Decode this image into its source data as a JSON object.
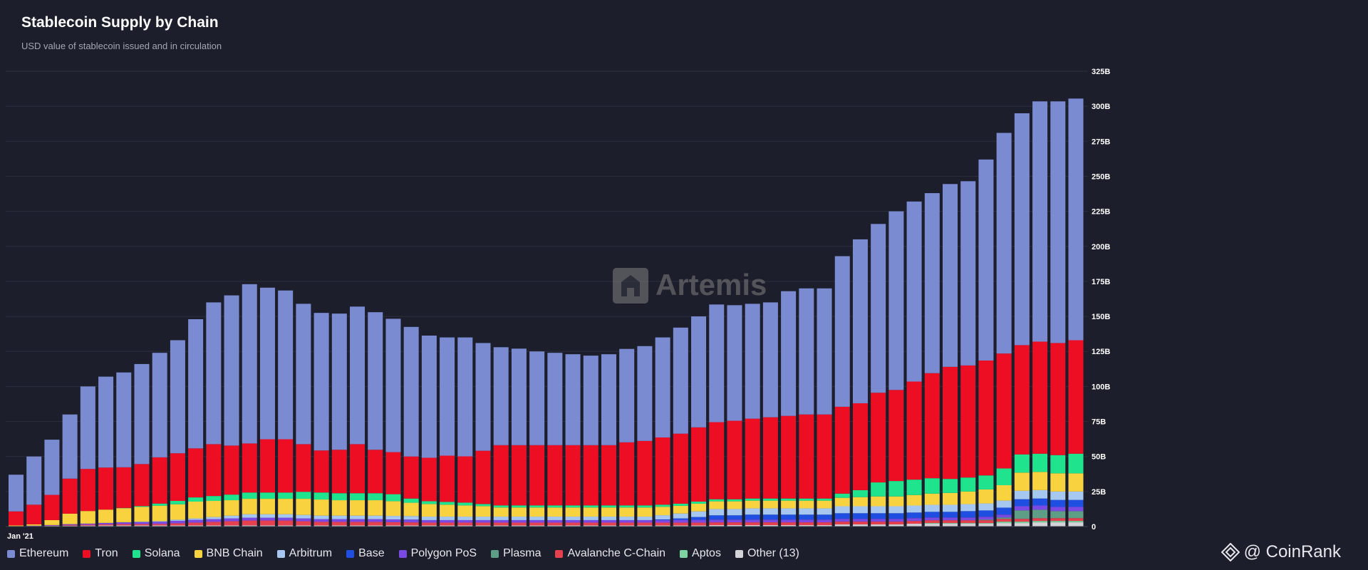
{
  "header": {
    "title": "Stablecoin Supply by Chain",
    "subtitle": "USD value of stablecoin issued and in circulation"
  },
  "watermark": {
    "text": "Artemis",
    "icon": "artemis-logo"
  },
  "brand": {
    "text": "@ CoinRank",
    "icon": "binance-diamond-icon"
  },
  "colors": {
    "background": "#1c1f2b",
    "gridline": "#2b2f3c",
    "axis_text": "#ffffff"
  },
  "chart_data": {
    "type": "bar",
    "stacked": true,
    "title": "Stablecoin Supply by Chain",
    "subtitle": "USD value of stablecoin issued and in circulation",
    "x_label_shown": "Jan '21",
    "y_tick_labels": [
      "0",
      "25B",
      "50B",
      "75B",
      "100B",
      "125B",
      "150B",
      "175B",
      "200B",
      "225B",
      "250B",
      "275B",
      "300B",
      "325B"
    ],
    "ylim": [
      0,
      325
    ],
    "y_unit": "B USD",
    "grid": true,
    "legend_position": "bottom-left",
    "totals": [
      37,
      50,
      62,
      80,
      100,
      107,
      110,
      116,
      124,
      133,
      148,
      158,
      165,
      173,
      171,
      169,
      159,
      152,
      152,
      157,
      153,
      149,
      143,
      136,
      135,
      135,
      130,
      128,
      127,
      125,
      124,
      123,
      122,
      123,
      127,
      129,
      135,
      141,
      149,
      159,
      159,
      160,
      162,
      168,
      171,
      171,
      191,
      203,
      216,
      226,
      232,
      239,
      245,
      249,
      263,
      282,
      297,
      305,
      305,
      309
    ],
    "series": [
      {
        "name": "Other (13)",
        "color": "#d4d4d8",
        "values": [
          0.3,
          0.4,
          0.5,
          0.6,
          0.7,
          0.8,
          0.8,
          0.8,
          0.8,
          0.8,
          0.8,
          0.8,
          0.8,
          0.8,
          0.8,
          0.8,
          0.8,
          0.8,
          0.8,
          0.8,
          0.8,
          0.8,
          0.8,
          0.8,
          0.8,
          0.8,
          0.8,
          0.8,
          0.8,
          0.8,
          0.8,
          0.8,
          0.8,
          0.8,
          0.8,
          0.8,
          0.8,
          0.8,
          0.8,
          1,
          1,
          1,
          1,
          1,
          1,
          1,
          1.5,
          1.5,
          1.5,
          1.5,
          2,
          2,
          2,
          2,
          2,
          2.5,
          2.5,
          3,
          3,
          3
        ]
      },
      {
        "name": "Aptos",
        "color": "#7ed4a0",
        "values": [
          0,
          0,
          0,
          0,
          0,
          0,
          0,
          0,
          0,
          0,
          0,
          0,
          0,
          0,
          0,
          0,
          0,
          0,
          0,
          0,
          0,
          0,
          0,
          0,
          0,
          0,
          0,
          0,
          0,
          0,
          0,
          0,
          0,
          0,
          0,
          0,
          0,
          0,
          0,
          0,
          0,
          0,
          0,
          0,
          0,
          0,
          0,
          0,
          0,
          0,
          0,
          0.5,
          0.5,
          0.5,
          0.5,
          1,
          1,
          1,
          1,
          1
        ]
      },
      {
        "name": "Avalanche C-Chain",
        "color": "#e5404e",
        "values": [
          0,
          0,
          0.2,
          0.5,
          0.6,
          0.8,
          1,
          1,
          1,
          1.5,
          2,
          2.5,
          3,
          3.5,
          3.5,
          3.5,
          3,
          2.5,
          2.5,
          2.5,
          2.5,
          2.3,
          2.2,
          2,
          2,
          2,
          2,
          2,
          2,
          2,
          2,
          2,
          2,
          2,
          2,
          2,
          2,
          2,
          2,
          2,
          2,
          2,
          2,
          2,
          2,
          2,
          2,
          2,
          2,
          2,
          2,
          2,
          2,
          2,
          2,
          2,
          2,
          2,
          2,
          2
        ]
      },
      {
        "name": "Plasma",
        "color": "#5f9e86",
        "values": [
          0,
          0,
          0,
          0,
          0,
          0,
          0,
          0,
          0,
          0,
          0,
          0,
          0,
          0,
          0,
          0,
          0,
          0,
          0,
          0,
          0,
          0,
          0,
          0,
          0,
          0,
          0,
          0,
          0,
          0,
          0,
          0,
          0,
          0,
          0,
          0,
          0,
          0,
          0,
          0,
          0,
          0,
          0,
          0,
          0,
          0,
          0,
          0,
          0,
          0,
          0,
          0,
          0,
          0,
          0.5,
          1,
          6,
          6,
          5,
          5
        ]
      },
      {
        "name": "Polygon PoS",
        "color": "#7b4ae2",
        "values": [
          0,
          0.2,
          0.4,
          0.6,
          0.8,
          1,
          1.2,
          1.4,
          1.6,
          1.8,
          2,
          2,
          2,
          2,
          2,
          2,
          2,
          2,
          2,
          2,
          2,
          2,
          2,
          1.8,
          1.8,
          1.8,
          1.8,
          1.8,
          1.8,
          1.8,
          1.8,
          1.8,
          1.8,
          1.8,
          1.8,
          1.8,
          1.8,
          2,
          2,
          2,
          2,
          2,
          2,
          2,
          2,
          2,
          2,
          2,
          2,
          2,
          2,
          2,
          2,
          2,
          2,
          2,
          3,
          3,
          3,
          3
        ]
      },
      {
        "name": "Base",
        "color": "#1f4fe0",
        "values": [
          0,
          0,
          0,
          0,
          0,
          0,
          0,
          0,
          0,
          0,
          0,
          0,
          0,
          0,
          0,
          0,
          0,
          0,
          0,
          0,
          0,
          0,
          0,
          0,
          0,
          0,
          0,
          0,
          0,
          0,
          0,
          0,
          0,
          0,
          0,
          0,
          0.5,
          1,
          2,
          3,
          3,
          3.5,
          3.5,
          3.5,
          3.5,
          3.5,
          4,
          4,
          4,
          4,
          4,
          4,
          4,
          4.5,
          4.5,
          5,
          5,
          5,
          5,
          5
        ]
      },
      {
        "name": "Arbitrum",
        "color": "#a6c8f0",
        "values": [
          0,
          0,
          0,
          0,
          0,
          0,
          0.1,
          0.3,
          0.5,
          0.8,
          1,
          1.5,
          2,
          2.5,
          2.5,
          2.5,
          2.5,
          2.5,
          2.5,
          2.5,
          2.5,
          2.5,
          2.5,
          2.5,
          2.5,
          2.5,
          2.5,
          2.5,
          2.5,
          2.5,
          2.5,
          2.5,
          2.5,
          2.5,
          2.5,
          2.5,
          3,
          3.5,
          4,
          4.5,
          4.5,
          4.5,
          4.5,
          4.5,
          4.5,
          4.5,
          5,
          5,
          5,
          5,
          5,
          5,
          5,
          5,
          5,
          5,
          6,
          6,
          6,
          6
        ]
      },
      {
        "name": "BNB Chain",
        "color": "#f8d23f",
        "values": [
          0.5,
          1,
          3.5,
          7.5,
          9,
          9.5,
          10,
          10.5,
          11,
          11,
          12,
          11.5,
          11,
          11,
          11,
          11,
          11.5,
          11.5,
          11,
          11,
          11,
          10.5,
          9.5,
          9,
          8.5,
          8,
          7.5,
          6.5,
          6.5,
          6.5,
          6.5,
          6.5,
          6.5,
          6.5,
          6.5,
          6.5,
          6,
          5.5,
          5.5,
          5.5,
          5.5,
          5.5,
          5.5,
          5.5,
          5.5,
          5.5,
          6,
          6.5,
          7,
          7,
          7.5,
          8,
          8.5,
          9,
          10,
          11,
          13,
          13,
          13,
          13
        ]
      },
      {
        "name": "Solana",
        "color": "#20e38e",
        "values": [
          0,
          0,
          0,
          0,
          0,
          0,
          0.2,
          0.6,
          1.5,
          2.4,
          3,
          3.5,
          4,
          4.5,
          4.5,
          4.5,
          5,
          5,
          5,
          5,
          5,
          5,
          3,
          2,
          2,
          2,
          1.5,
          1.5,
          1.5,
          1.5,
          1.5,
          1.5,
          1.5,
          1.5,
          1.5,
          1.5,
          1.5,
          1.5,
          1.5,
          1.5,
          1.5,
          1.5,
          1.5,
          1.5,
          1.5,
          1.5,
          3,
          5,
          10,
          11,
          11,
          11,
          10,
          10,
          10,
          12,
          13,
          13,
          13,
          14
        ]
      },
      {
        "name": "Tron",
        "color": "#ee0e24",
        "values": [
          10,
          14,
          18,
          25,
          30,
          30,
          29,
          30,
          33,
          34,
          35,
          37,
          35,
          35,
          38,
          38,
          34,
          30,
          31,
          35,
          31,
          30,
          30,
          31,
          33,
          33,
          38,
          43,
          43,
          43,
          43,
          43,
          43,
          43,
          45,
          46,
          48,
          50,
          53,
          55,
          56,
          57,
          58,
          59,
          60,
          60,
          62,
          62,
          64,
          65,
          70,
          75,
          80,
          80,
          82,
          82,
          78,
          80,
          80,
          81
        ]
      },
      {
        "name": "Ethereum",
        "color": "#7b8bd2",
        "values": [
          26.2,
          34.4,
          39.4,
          45.8,
          58.9,
          64.9,
          67.7,
          71.4,
          74.6,
          80.7,
          92.2,
          101.2,
          107.2,
          113.7,
          108.2,
          106.2,
          100.2,
          98.2,
          97.2,
          98.2,
          98.2,
          95.2,
          92.5,
          87.2,
          84.4,
          84.9,
          76.9,
          69.9,
          68.9,
          66.9,
          65.9,
          64.9,
          63.9,
          64.9,
          66.7,
          67.7,
          71.4,
          75.7,
          79.2,
          84,
          82.5,
          82,
          82,
          89,
          90,
          90,
          107.5,
          117,
          120.5,
          127.5,
          128.5,
          128.5,
          130.5,
          131.5,
          143.5,
          157.5,
          165.5,
          171.5,
          172.5,
          172.5
        ]
      }
    ]
  },
  "legend": [
    {
      "label": "Ethereum",
      "color": "#7b8bd2"
    },
    {
      "label": "Tron",
      "color": "#ee0e24"
    },
    {
      "label": "Solana",
      "color": "#20e38e"
    },
    {
      "label": "BNB Chain",
      "color": "#f8d23f"
    },
    {
      "label": "Arbitrum",
      "color": "#a6c8f0"
    },
    {
      "label": "Base",
      "color": "#1f4fe0"
    },
    {
      "label": "Polygon PoS",
      "color": "#7b4ae2"
    },
    {
      "label": "Plasma",
      "color": "#5f9e86"
    },
    {
      "label": "Avalanche C-Chain",
      "color": "#e5404e"
    },
    {
      "label": "Aptos",
      "color": "#7ed4a0"
    },
    {
      "label": "Other (13)",
      "color": "#d4d4d8"
    }
  ]
}
